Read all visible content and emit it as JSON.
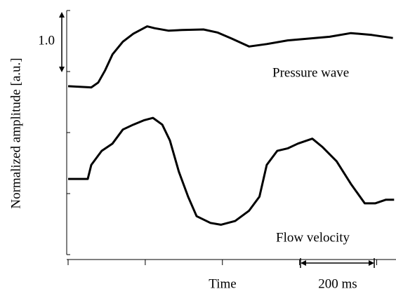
{
  "chart_data": {
    "type": "line",
    "x_label": "Time",
    "y_label": "Normalized amplitude [a.u.]",
    "annotations": {
      "pressure": "Pressure wave",
      "flow": "Flow velocity",
      "amplitude_scale": "1.0",
      "time_scale": "200 ms"
    },
    "xlim": [
      0,
      850
    ],
    "ylim": [
      0,
      4
    ],
    "xticks": [
      0,
      200,
      400,
      600,
      800
    ],
    "yticks": [
      0,
      1,
      2,
      3,
      4
    ],
    "series": [
      {
        "name": "Pressure wave",
        "color": "#000000",
        "x": [
          0,
          60,
          78,
          96,
          115,
          142,
          169,
          205,
          224,
          260,
          296,
          351,
          387,
          424,
          469,
          515,
          569,
          624,
          678,
          733,
          787,
          842
        ],
        "values": [
          2.76,
          2.74,
          2.82,
          3.02,
          3.28,
          3.49,
          3.62,
          3.74,
          3.71,
          3.67,
          3.68,
          3.69,
          3.64,
          3.54,
          3.41,
          3.45,
          3.51,
          3.54,
          3.57,
          3.63,
          3.6,
          3.55
        ]
      },
      {
        "name": "Flow velocity",
        "color": "#000000",
        "x": [
          0,
          51,
          60,
          87,
          115,
          142,
          169,
          196,
          220,
          244,
          264,
          287,
          311,
          333,
          369,
          396,
          433,
          469,
          496,
          515,
          542,
          569,
          596,
          633,
          660,
          696,
          733,
          769,
          796,
          824,
          845
        ],
        "values": [
          1.24,
          1.24,
          1.47,
          1.7,
          1.82,
          2.05,
          2.13,
          2.2,
          2.24,
          2.13,
          1.87,
          1.36,
          0.95,
          0.63,
          0.52,
          0.49,
          0.55,
          0.72,
          0.95,
          1.47,
          1.7,
          1.74,
          1.82,
          1.9,
          1.76,
          1.53,
          1.16,
          0.84,
          0.84,
          0.9,
          0.9
        ]
      }
    ]
  }
}
